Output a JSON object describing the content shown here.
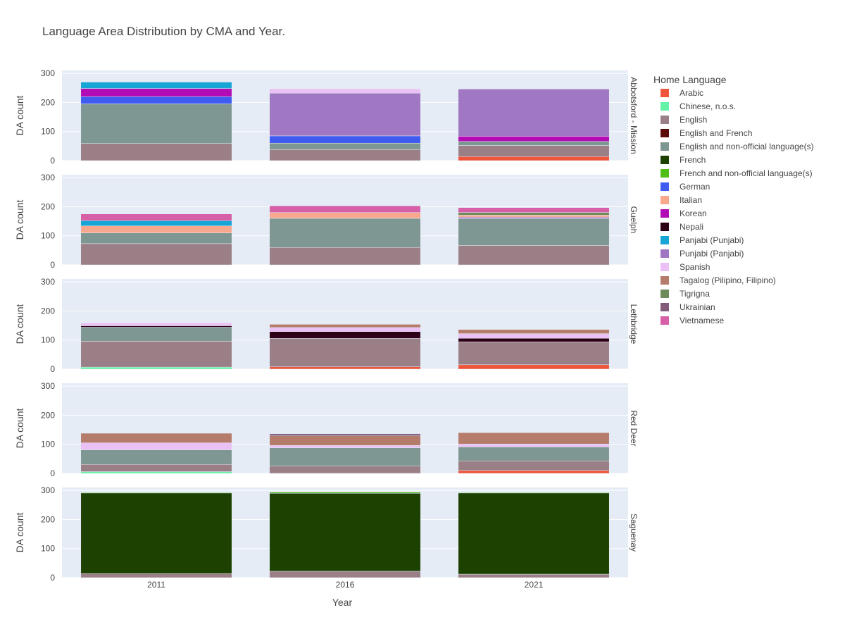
{
  "chart_data": {
    "type": "bar",
    "stacked": true,
    "title": "Language Area Distribution by CMA and Year.",
    "xlabel": "Year",
    "ylabel": "DA count",
    "categories": [
      "2011",
      "2016",
      "2021"
    ],
    "ylim": [
      0,
      310
    ],
    "yticks": [
      0,
      100,
      200,
      300
    ],
    "grid": true,
    "legend": {
      "title": "Home Language",
      "placement": "right",
      "entries": [
        {
          "name": "Arabic",
          "color": "#EF553B"
        },
        {
          "name": "Chinese, n.o.s.",
          "color": "#66F2A6"
        },
        {
          "name": "English",
          "color": "#9B7F87"
        },
        {
          "name": "English and French",
          "color": "#5B0A0A"
        },
        {
          "name": "English and non-official language(s)",
          "color": "#7F9793"
        },
        {
          "name": "French",
          "color": "#1C4100"
        },
        {
          "name": "French and non-official language(s)",
          "color": "#4FBE16"
        },
        {
          "name": "German",
          "color": "#3F5BF0"
        },
        {
          "name": "Italian",
          "color": "#F8A88D"
        },
        {
          "name": "Korean",
          "color": "#B20DB4"
        },
        {
          "name": "Nepali",
          "color": "#2E0018"
        },
        {
          "name": "Panjabi (Punjabi)",
          "color": "#17A5D5"
        },
        {
          "name": "Punjabi (Panjabi)",
          "color": "#A077C2"
        },
        {
          "name": "Spanish",
          "color": "#EBC0F5"
        },
        {
          "name": "Tagalog (Pilipino, Filipino)",
          "color": "#B57B6B"
        },
        {
          "name": "Tigrigna",
          "color": "#6F8B5C"
        },
        {
          "name": "Ukrainian",
          "color": "#835A7A"
        },
        {
          "name": "Vietnamese",
          "color": "#D65FA7"
        }
      ]
    },
    "facets": [
      {
        "name": "Abbotsford - Mission",
        "stacks": [
          [
            {
              "lang": "English",
              "value": 59
            },
            {
              "lang": "English and non-official language(s)",
              "value": 136
            },
            {
              "lang": "German",
              "value": 25
            },
            {
              "lang": "Korean",
              "value": 28
            },
            {
              "lang": "Panjabi (Punjabi)",
              "value": 22
            }
          ],
          [
            {
              "lang": "English",
              "value": 38
            },
            {
              "lang": "English and non-official language(s)",
              "value": 22
            },
            {
              "lang": "German",
              "value": 25
            },
            {
              "lang": "Punjabi (Panjabi)",
              "value": 147
            },
            {
              "lang": "Spanish",
              "value": 15
            }
          ],
          [
            {
              "lang": "Arabic",
              "value": 14
            },
            {
              "lang": "English",
              "value": 38
            },
            {
              "lang": "English and non-official language(s)",
              "value": 14
            },
            {
              "lang": "Korean",
              "value": 18
            },
            {
              "lang": "Punjabi (Panjabi)",
              "value": 162
            }
          ]
        ]
      },
      {
        "name": "Guelph",
        "stacks": [
          [
            {
              "lang": "English",
              "value": 73
            },
            {
              "lang": "English and non-official language(s)",
              "value": 37
            },
            {
              "lang": "Italian",
              "value": 24
            },
            {
              "lang": "Panjabi (Punjabi)",
              "value": 18
            },
            {
              "lang": "Vietnamese",
              "value": 23
            }
          ],
          [
            {
              "lang": "English",
              "value": 60
            },
            {
              "lang": "English and non-official language(s)",
              "value": 100
            },
            {
              "lang": "Italian",
              "value": 20
            },
            {
              "lang": "Vietnamese",
              "value": 23
            }
          ],
          [
            {
              "lang": "English",
              "value": 67
            },
            {
              "lang": "English and non-official language(s)",
              "value": 92
            },
            {
              "lang": "Punjabi (Panjabi)",
              "value": 5
            },
            {
              "lang": "Italian",
              "value": 7
            },
            {
              "lang": "Tigrigna",
              "value": 9
            },
            {
              "lang": "Vietnamese",
              "value": 17
            }
          ]
        ]
      },
      {
        "name": "Lethbridge",
        "stacks": [
          [
            {
              "lang": "Chinese, n.o.s.",
              "value": 7
            },
            {
              "lang": "English",
              "value": 89
            },
            {
              "lang": "English and non-official language(s)",
              "value": 48
            },
            {
              "lang": "Nepali",
              "value": 5
            },
            {
              "lang": "Spanish",
              "value": 10
            }
          ],
          [
            {
              "lang": "Arabic",
              "value": 8
            },
            {
              "lang": "English",
              "value": 98
            },
            {
              "lang": "Nepali",
              "value": 23
            },
            {
              "lang": "Spanish",
              "value": 14
            },
            {
              "lang": "Tagalog (Pilipino, Filipino)",
              "value": 11
            }
          ],
          [
            {
              "lang": "Arabic",
              "value": 15
            },
            {
              "lang": "English",
              "value": 79
            },
            {
              "lang": "Nepali",
              "value": 12
            },
            {
              "lang": "Spanish",
              "value": 16
            },
            {
              "lang": "Tagalog (Pilipino, Filipino)",
              "value": 14
            }
          ]
        ]
      },
      {
        "name": "Red Deer",
        "stacks": [
          [
            {
              "lang": "Chinese, n.o.s.",
              "value": 6
            },
            {
              "lang": "English",
              "value": 25
            },
            {
              "lang": "English and non-official language(s)",
              "value": 50
            },
            {
              "lang": "Spanish",
              "value": 24
            },
            {
              "lang": "Tagalog (Pilipino, Filipino)",
              "value": 33
            }
          ],
          [
            {
              "lang": "English",
              "value": 26
            },
            {
              "lang": "English and non-official language(s)",
              "value": 62
            },
            {
              "lang": "Spanish",
              "value": 8
            },
            {
              "lang": "Tagalog (Pilipino, Filipino)",
              "value": 33
            },
            {
              "lang": "Ukrainian",
              "value": 7
            }
          ],
          [
            {
              "lang": "Arabic",
              "value": 10
            },
            {
              "lang": "English",
              "value": 33
            },
            {
              "lang": "English and non-official language(s)",
              "value": 48
            },
            {
              "lang": "Spanish",
              "value": 10
            },
            {
              "lang": "Tagalog (Pilipino, Filipino)",
              "value": 39
            }
          ]
        ]
      },
      {
        "name": "Saguenay",
        "stacks": [
          [
            {
              "lang": "English",
              "value": 14
            },
            {
              "lang": "French",
              "value": 277
            },
            {
              "lang": "French and non-official language(s)",
              "value": 2
            }
          ],
          [
            {
              "lang": "English",
              "value": 22
            },
            {
              "lang": "French",
              "value": 268
            },
            {
              "lang": "French and non-official language(s)",
              "value": 4
            }
          ],
          [
            {
              "lang": "English",
              "value": 12
            },
            {
              "lang": "French",
              "value": 279
            },
            {
              "lang": "French and non-official language(s)",
              "value": 2
            }
          ]
        ]
      }
    ]
  }
}
